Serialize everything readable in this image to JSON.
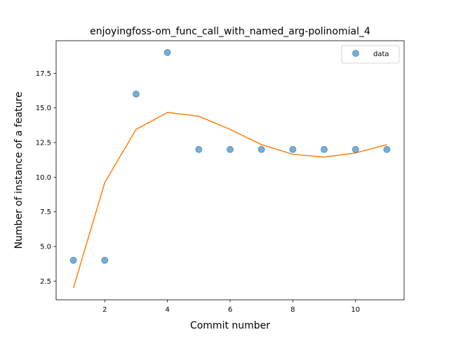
{
  "chart_data": {
    "type": "scatter",
    "title": "enjoyingfoss-om_func_call_with_named_arg-polinomial_4",
    "xlabel": "Commit number",
    "ylabel": "Number of instance of a feature",
    "xlim": [
      0.45,
      11.55
    ],
    "ylim": [
      1.15,
      19.85
    ],
    "xticks": [
      2,
      4,
      6,
      8,
      10
    ],
    "xtick_labels": [
      "2",
      "4",
      "6",
      "8",
      "10"
    ],
    "yticks": [
      2.5,
      5.0,
      7.5,
      10.0,
      12.5,
      15.0,
      17.5
    ],
    "ytick_labels": [
      "2.5",
      "5.0",
      "7.5",
      "10.0",
      "12.5",
      "15.0",
      "17.5"
    ],
    "grid": false,
    "legend_position": "top-right",
    "series": [
      {
        "name": "data",
        "kind": "scatter",
        "color": "#1f77b4",
        "x": [
          1,
          2,
          3,
          4,
          5,
          6,
          7,
          8,
          9,
          10,
          11
        ],
        "y": [
          4,
          4,
          16,
          19,
          12,
          12,
          12,
          12,
          12,
          12,
          12
        ]
      },
      {
        "kind": "line",
        "color": "#ff7f0e",
        "x": [
          1,
          2,
          3,
          4,
          5,
          6,
          7,
          8,
          9,
          10,
          11
        ],
        "y": [
          2.0,
          9.6,
          13.45,
          14.67,
          14.4,
          13.45,
          12.35,
          11.65,
          11.45,
          11.75,
          12.35
        ]
      }
    ]
  }
}
